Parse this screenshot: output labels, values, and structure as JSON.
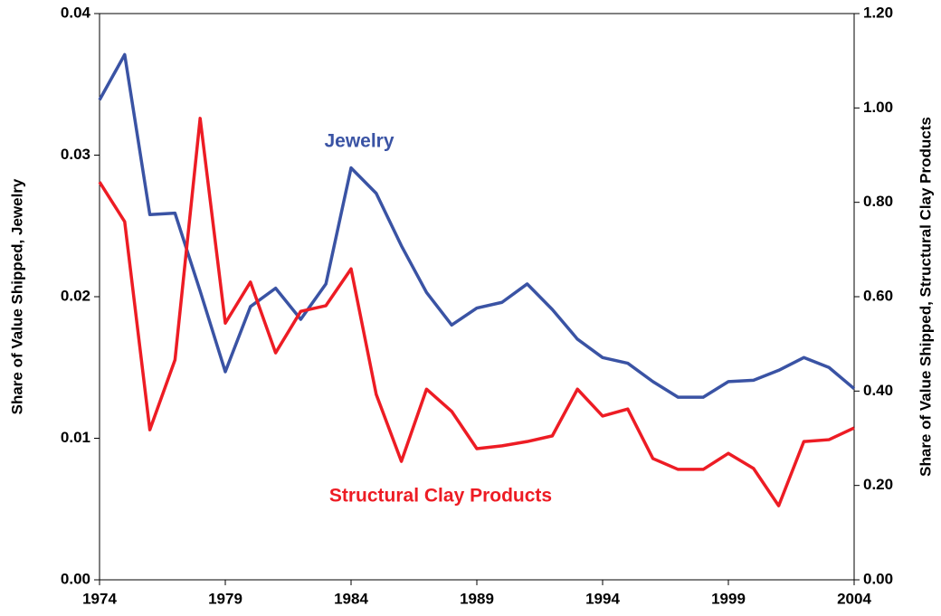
{
  "chart_data": {
    "type": "line",
    "y_label": "Share of Value Shipped, Jewelry",
    "y2_label": "Share of Value Shipped, Structural Clay Products",
    "x": [
      1974,
      1975,
      1976,
      1977,
      1978,
      1979,
      1980,
      1981,
      1982,
      1983,
      1984,
      1985,
      1986,
      1987,
      1988,
      1989,
      1990,
      1991,
      1992,
      1993,
      1994,
      1995,
      1996,
      1997,
      1998,
      1999,
      2000,
      2001,
      2002,
      2003,
      2004
    ],
    "xlim": [
      1974,
      2004
    ],
    "xticks": [
      1974,
      1979,
      1984,
      1989,
      1994,
      1999,
      2004
    ],
    "ylim": [
      0,
      0.04
    ],
    "yticks": [
      {
        "value": 0,
        "label": "0.00"
      },
      {
        "value": 0.01,
        "label": "0.01"
      },
      {
        "value": 0.02,
        "label": "0.02"
      },
      {
        "value": 0.03,
        "label": "0.03"
      },
      {
        "value": 0.04,
        "label": "0.04"
      }
    ],
    "y2lim": [
      0,
      1.2
    ],
    "y2ticks": [
      {
        "value": 0,
        "label": "0.00"
      },
      {
        "value": 0.2,
        "label": "0.20"
      },
      {
        "value": 0.4,
        "label": "0.40"
      },
      {
        "value": 0.6,
        "label": "0.60"
      },
      {
        "value": 0.8,
        "label": "0.80"
      },
      {
        "value": 1.0,
        "label": "1.00"
      },
      {
        "value": 1.2,
        "label": "1.20"
      }
    ],
    "series": [
      {
        "name": "Jewelry",
        "color": "#3a53a4",
        "values": [
          0.0339,
          0.0371,
          0.0258,
          0.0259,
          0.0204,
          0.0147,
          0.0193,
          0.0206,
          0.0184,
          0.0209,
          0.0291,
          0.0273,
          0.0236,
          0.0203,
          0.018,
          0.0192,
          0.0196,
          0.0209,
          0.0191,
          0.017,
          0.0157,
          0.0153,
          0.014,
          0.0129,
          0.0129,
          0.014,
          0.0141,
          0.0148,
          0.0157,
          0.015,
          0.0135
        ]
      },
      {
        "name": "Structural Clay Products",
        "color": "#ed1c24",
        "axis": "y2",
        "values": [
          0.843,
          0.759,
          0.318,
          0.466,
          0.978,
          0.544,
          0.631,
          0.481,
          0.569,
          0.581,
          0.659,
          0.393,
          0.251,
          0.404,
          0.357,
          0.278,
          0.284,
          0.293,
          0.305,
          0.404,
          0.347,
          0.362,
          0.257,
          0.234,
          0.234,
          0.268,
          0.236,
          0.157,
          0.293,
          0.297,
          0.322
        ]
      }
    ]
  }
}
